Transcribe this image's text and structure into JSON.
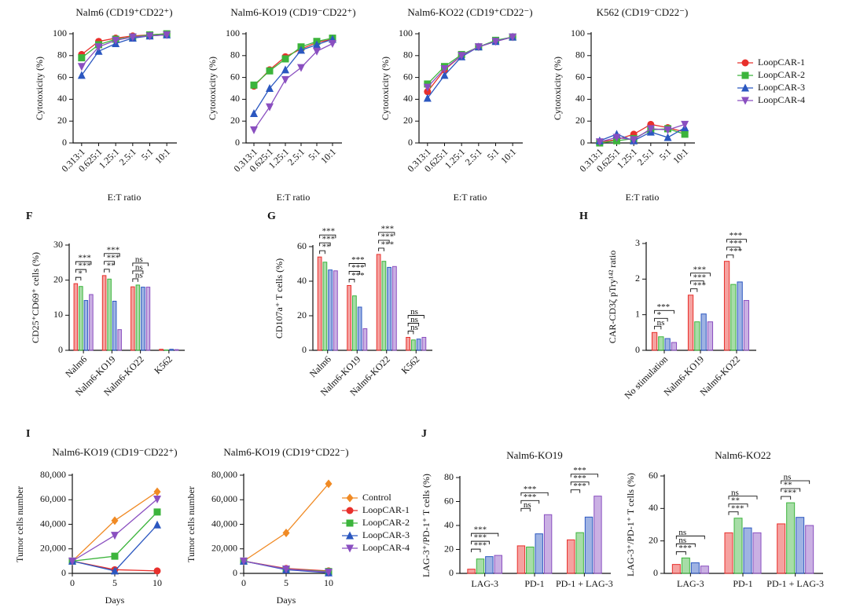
{
  "chart_data": [
    {
      "type": "line",
      "title": "Nalm6 (CD19⁺CD22⁺)",
      "ylabel": "Cytotoxicity (%)",
      "xlabel": "E:T ratio",
      "categories": [
        "0.313:1",
        "0.625:1",
        "1.25:1",
        "2.5:1",
        "5:1",
        "10:1"
      ],
      "ylim": [
        0,
        100
      ],
      "yticks": [
        0,
        20,
        40,
        60,
        80,
        100
      ],
      "series": [
        {
          "name": "LoopCAR-1",
          "color": "#e8302c",
          "marker": "circle",
          "values": [
            81,
            93,
            96,
            98,
            99,
            100
          ]
        },
        {
          "name": "LoopCAR-2",
          "color": "#3cb43c",
          "marker": "square",
          "values": [
            78,
            90,
            95,
            97,
            99,
            100
          ]
        },
        {
          "name": "LoopCAR-3",
          "color": "#2b57c0",
          "marker": "triangle",
          "values": [
            62,
            84,
            91,
            96,
            98,
            99
          ]
        },
        {
          "name": "LoopCAR-4",
          "color": "#8a4fc0",
          "marker": "triangle-down",
          "values": [
            70,
            88,
            94,
            97,
            98,
            99
          ]
        }
      ]
    },
    {
      "type": "line",
      "title": "Nalm6-KO19 (CD19⁻CD22⁺)",
      "ylabel": "Cytotoxicity (%)",
      "xlabel": "E:T ratio",
      "categories": [
        "0.313:1",
        "0.625:1",
        "1.25:1",
        "2.5:1",
        "5:1",
        "10:1"
      ],
      "ylim": [
        0,
        100
      ],
      "yticks": [
        0,
        20,
        40,
        60,
        80,
        100
      ],
      "series": [
        {
          "name": "LoopCAR-1",
          "color": "#e8302c",
          "marker": "circle",
          "values": [
            52,
            67,
            79,
            86,
            92,
            95
          ]
        },
        {
          "name": "LoopCAR-2",
          "color": "#3cb43c",
          "marker": "square",
          "values": [
            53,
            66,
            77,
            88,
            93,
            96
          ]
        },
        {
          "name": "LoopCAR-3",
          "color": "#2b57c0",
          "marker": "triangle",
          "values": [
            27,
            50,
            67,
            85,
            90,
            95
          ]
        },
        {
          "name": "LoopCAR-4",
          "color": "#8a4fc0",
          "marker": "triangle-down",
          "values": [
            12,
            33,
            58,
            69,
            84,
            91
          ]
        }
      ]
    },
    {
      "type": "line",
      "title": "Nalm6-KO22 (CD19⁺CD22⁻)",
      "ylabel": "Cytotoxicity (%)",
      "xlabel": "E:T ratio",
      "categories": [
        "0.313:1",
        "0.625:1",
        "1.25:1",
        "2.5:1",
        "5:1",
        "10:1"
      ],
      "ylim": [
        0,
        100
      ],
      "yticks": [
        0,
        20,
        40,
        60,
        80,
        100
      ],
      "series": [
        {
          "name": "LoopCAR-1",
          "color": "#e8302c",
          "marker": "circle",
          "values": [
            47,
            67,
            80,
            88,
            93,
            97
          ]
        },
        {
          "name": "LoopCAR-2",
          "color": "#3cb43c",
          "marker": "square",
          "values": [
            54,
            70,
            81,
            88,
            94,
            97
          ]
        },
        {
          "name": "LoopCAR-3",
          "color": "#2b57c0",
          "marker": "triangle",
          "values": [
            41,
            62,
            79,
            88,
            93,
            97
          ]
        },
        {
          "name": "LoopCAR-4",
          "color": "#8a4fc0",
          "marker": "triangle-down",
          "values": [
            51,
            68,
            80,
            88,
            93,
            97
          ]
        }
      ]
    },
    {
      "type": "line",
      "title": "K562 (CD19⁻CD22⁻)",
      "ylabel": "Cytotoxicity (%)",
      "xlabel": "E:T ratio",
      "legend": "right",
      "categories": [
        "0.313:1",
        "0.625:1",
        "1.25:1",
        "2.5:1",
        "5:1",
        "10:1"
      ],
      "ylim": [
        0,
        100
      ],
      "yticks": [
        0,
        20,
        40,
        60,
        80,
        100
      ],
      "series": [
        {
          "name": "LoopCAR-1",
          "color": "#e8302c",
          "marker": "circle",
          "values": [
            1,
            3,
            8,
            17,
            14,
            10
          ]
        },
        {
          "name": "LoopCAR-2",
          "color": "#3cb43c",
          "marker": "square",
          "values": [
            0,
            2,
            4,
            12,
            13,
            8
          ]
        },
        {
          "name": "LoopCAR-3",
          "color": "#2b57c0",
          "marker": "triangle",
          "values": [
            2,
            8,
            2,
            10,
            5,
            14
          ]
        },
        {
          "name": "LoopCAR-4",
          "color": "#8a4fc0",
          "marker": "triangle-down",
          "values": [
            1,
            5,
            3,
            13,
            12,
            17
          ]
        }
      ]
    },
    {
      "type": "bar",
      "panel": "F",
      "ylabel": "CD25⁺CD69⁺ cells (%)",
      "categories": [
        "Nalm6",
        "Nalm6-KO19",
        "Nalm6-KO22",
        "K562"
      ],
      "ylim": [
        0,
        30
      ],
      "yticks": [
        0,
        10,
        20,
        30
      ],
      "series": [
        {
          "name": "LoopCAR-1",
          "color": "#e8302c",
          "values": [
            19,
            21.3,
            18.1,
            0.3
          ]
        },
        {
          "name": "LoopCAR-2",
          "color": "#3cb43c",
          "values": [
            18.2,
            20.3,
            18.6,
            0.1
          ]
        },
        {
          "name": "LoopCAR-3",
          "color": "#2b57c0",
          "values": [
            14.2,
            14,
            18,
            0.3
          ]
        },
        {
          "name": "LoopCAR-4",
          "color": "#8a4fc0",
          "values": [
            15.9,
            5.9,
            18,
            0.2
          ]
        }
      ],
      "significance": [
        [
          "*",
          "***",
          "***"
        ],
        [
          "**",
          "***",
          "***"
        ],
        [
          "ns",
          "ns",
          "ns"
        ],
        null
      ]
    },
    {
      "type": "bar",
      "panel": "G",
      "ylabel": "CD107a⁺ T cells (%)",
      "categories": [
        "Nalm6",
        "Nalm6-KO19",
        "Nalm6-KO22",
        "K562"
      ],
      "ylim": [
        0,
        60
      ],
      "yticks": [
        0,
        20,
        40,
        60
      ],
      "series": [
        {
          "name": "LoopCAR-1",
          "color": "#e8302c",
          "values": [
            54,
            37.5,
            55.5,
            7.5
          ]
        },
        {
          "name": "LoopCAR-2",
          "color": "#3cb43c",
          "values": [
            51,
            31.5,
            51.5,
            6
          ]
        },
        {
          "name": "LoopCAR-3",
          "color": "#2b57c0",
          "values": [
            46.5,
            25,
            48,
            6.5
          ]
        },
        {
          "name": "LoopCAR-4",
          "color": "#8a4fc0",
          "values": [
            46,
            12.5,
            48.5,
            7.5
          ]
        }
      ],
      "significance": [
        [
          "**",
          "***",
          "***"
        ],
        [
          "***",
          "***",
          "***"
        ],
        [
          "***",
          "***",
          "***"
        ],
        [
          "ns",
          "ns",
          "ns"
        ]
      ]
    },
    {
      "type": "bar",
      "panel": "H",
      "ylabel": "CAR-CD3ζ pTry¹⁴² ratio",
      "categories": [
        "No stimulation",
        "Nalm6-KO19",
        "Nalm6-KO22"
      ],
      "ylim": [
        0,
        3
      ],
      "yticks": [
        0,
        1,
        2,
        3
      ],
      "series": [
        {
          "name": "LoopCAR-1",
          "color": "#e8302c",
          "values": [
            0.5,
            1.55,
            2.5
          ]
        },
        {
          "name": "LoopCAR-2",
          "color": "#3cb43c",
          "values": [
            0.38,
            0.8,
            1.85
          ]
        },
        {
          "name": "LoopCAR-3",
          "color": "#2b57c0",
          "values": [
            0.33,
            1.02,
            1.92
          ]
        },
        {
          "name": "LoopCAR-4",
          "color": "#8a4fc0",
          "values": [
            0.22,
            0.8,
            1.4
          ]
        }
      ],
      "significance": [
        [
          "ns",
          "*",
          "***"
        ],
        [
          "***",
          "***",
          "***"
        ],
        [
          "***",
          "***",
          "***"
        ]
      ]
    },
    {
      "type": "line",
      "panel": "I",
      "title": "Nalm6-KO19 (CD19⁻CD22⁺)",
      "ylabel": "Tumor cells number",
      "xlabel": "Days",
      "legend": "right",
      "x": [
        0,
        5,
        10
      ],
      "xlim": [
        0,
        10
      ],
      "xticks": [
        0,
        5,
        10
      ],
      "ylim": [
        0,
        80000
      ],
      "yticks": [
        0,
        {
          "value": 20000,
          "label": "20,000"
        },
        {
          "value": 40000,
          "label": "40,000"
        },
        {
          "value": 60000,
          "label": "60,000"
        },
        {
          "value": 80000,
          "label": "80,000"
        }
      ],
      "series": [
        {
          "name": "Control",
          "color": "#f08a24",
          "marker": "diamond",
          "values": [
            10000,
            43000,
            66500
          ]
        },
        {
          "name": "LoopCAR-1",
          "color": "#e8302c",
          "marker": "circle",
          "values": [
            10000,
            3000,
            2000
          ]
        },
        {
          "name": "LoopCAR-2",
          "color": "#3cb43c",
          "marker": "square",
          "values": [
            10000,
            14000,
            50000
          ]
        },
        {
          "name": "LoopCAR-3",
          "color": "#2b57c0",
          "marker": "triangle",
          "values": [
            10000,
            2000,
            39500
          ]
        },
        {
          "name": "LoopCAR-4",
          "color": "#8a4fc0",
          "marker": "triangle-down",
          "values": [
            10000,
            31000,
            60500
          ]
        }
      ]
    },
    {
      "type": "line",
      "title": "Nalm6-KO19 (CD19⁺CD22⁻)",
      "ylabel": "Tumor cells number",
      "xlabel": "Days",
      "x": [
        0,
        5,
        10
      ],
      "xlim": [
        0,
        10
      ],
      "xticks": [
        0,
        5,
        10
      ],
      "ylim": [
        0,
        80000
      ],
      "yticks": [
        0,
        {
          "value": 20000,
          "label": "20,000"
        },
        {
          "value": 40000,
          "label": "40,000"
        },
        {
          "value": 60000,
          "label": "60,000"
        },
        {
          "value": 80000,
          "label": "80,000"
        }
      ],
      "series": [
        {
          "name": "Control",
          "color": "#f08a24",
          "marker": "diamond",
          "values": [
            10000,
            33000,
            73000
          ]
        },
        {
          "name": "LoopCAR-1",
          "color": "#e8302c",
          "marker": "circle",
          "values": [
            10000,
            4000,
            2000
          ]
        },
        {
          "name": "LoopCAR-2",
          "color": "#3cb43c",
          "marker": "square",
          "values": [
            10000,
            3500,
            1500
          ]
        },
        {
          "name": "LoopCAR-3",
          "color": "#2b57c0",
          "marker": "triangle",
          "values": [
            10000,
            3000,
            500
          ]
        },
        {
          "name": "LoopCAR-4",
          "color": "#8a4fc0",
          "marker": "triangle-down",
          "values": [
            10000,
            3500,
            1000
          ]
        }
      ]
    },
    {
      "type": "bar",
      "panel": "J",
      "title": "Nalm6-KO19",
      "ylabel": "LAG-3⁺/PD-1⁺ T cells (%)",
      "categories": [
        "LAG-3",
        "PD-1",
        "PD-1 + LAG-3"
      ],
      "ylim": [
        0,
        80
      ],
      "yticks": [
        0,
        20,
        40,
        60,
        80
      ],
      "series": [
        {
          "name": "LoopCAR-1",
          "color": "#e8302c",
          "values": [
            3.5,
            23,
            28
          ]
        },
        {
          "name": "LoopCAR-2",
          "color": "#3cb43c",
          "values": [
            12,
            22,
            34
          ]
        },
        {
          "name": "LoopCAR-3",
          "color": "#2b57c0",
          "values": [
            14,
            33,
            47
          ]
        },
        {
          "name": "LoopCAR-4",
          "color": "#8a4fc0",
          "values": [
            15,
            49,
            64.5
          ]
        }
      ],
      "significance": [
        [
          "***",
          "***",
          "***"
        ],
        [
          "ns",
          "***",
          "***"
        ],
        [
          "***",
          "***",
          "***"
        ]
      ]
    },
    {
      "type": "bar",
      "title": "Nalm6-KO22",
      "ylabel": "LAG-3⁺/PD-1⁺ T cells (%)",
      "categories": [
        "LAG-3",
        "PD-1",
        "PD-1 + LAG-3"
      ],
      "ylim": [
        0,
        60
      ],
      "yticks": [
        0,
        20,
        40,
        60
      ],
      "series": [
        {
          "name": "LoopCAR-1",
          "color": "#e8302c",
          "values": [
            5.5,
            25,
            30.5
          ]
        },
        {
          "name": "LoopCAR-2",
          "color": "#3cb43c",
          "values": [
            9.5,
            34,
            43.5
          ]
        },
        {
          "name": "LoopCAR-3",
          "color": "#2b57c0",
          "values": [
            6.5,
            28,
            34.5
          ]
        },
        {
          "name": "LoopCAR-4",
          "color": "#8a4fc0",
          "values": [
            4.5,
            25,
            29.5
          ]
        }
      ],
      "significance": [
        [
          "***",
          "ns",
          "ns"
        ],
        [
          "***",
          "**",
          "ns"
        ],
        [
          "***",
          "**",
          "ns"
        ]
      ]
    }
  ]
}
